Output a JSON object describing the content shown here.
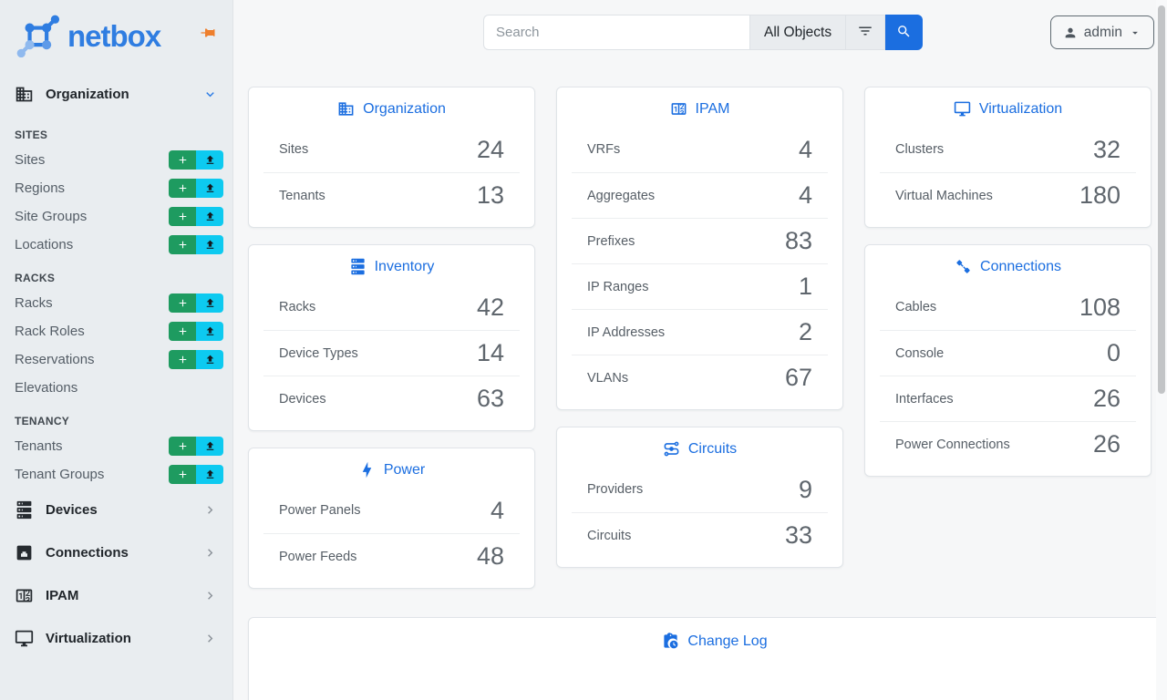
{
  "brand": {
    "name": "netbox",
    "logo_icon": "netbox-logo-icon",
    "pin_icon": "pin-icon"
  },
  "topbar": {
    "search": {
      "placeholder": "Search",
      "scope": "All Objects",
      "filter_icon": "filter-icon",
      "submit_icon": "search-icon"
    },
    "user": {
      "name": "admin",
      "icon": "person-icon",
      "caret_icon": "caret-down-icon"
    }
  },
  "sidebar": {
    "primary": [
      {
        "label": "Organization",
        "icon": "building-icon",
        "expanded": true,
        "chevron": "chevron-down-icon",
        "sections": [
          {
            "header": "SITES",
            "items": [
              {
                "label": "Sites",
                "can_add": true,
                "can_import": true
              },
              {
                "label": "Regions",
                "can_add": true,
                "can_import": true
              },
              {
                "label": "Site Groups",
                "can_add": true,
                "can_import": true
              },
              {
                "label": "Locations",
                "can_add": true,
                "can_import": true
              }
            ]
          },
          {
            "header": "RACKS",
            "items": [
              {
                "label": "Racks",
                "can_add": true,
                "can_import": true
              },
              {
                "label": "Rack Roles",
                "can_add": true,
                "can_import": true
              },
              {
                "label": "Reservations",
                "can_add": true,
                "can_import": true
              },
              {
                "label": "Elevations",
                "can_add": false,
                "can_import": false
              }
            ]
          },
          {
            "header": "TENANCY",
            "items": [
              {
                "label": "Tenants",
                "can_add": true,
                "can_import": true
              },
              {
                "label": "Tenant Groups",
                "can_add": true,
                "can_import": true
              }
            ]
          }
        ]
      },
      {
        "label": "Devices",
        "icon": "server-rack-icon",
        "expanded": false,
        "chevron": "chevron-right-icon"
      },
      {
        "label": "Connections",
        "icon": "ethernet-port-icon",
        "expanded": false,
        "chevron": "chevron-right-icon"
      },
      {
        "label": "IPAM",
        "icon": "counter-icon",
        "expanded": false,
        "chevron": "chevron-right-icon"
      },
      {
        "label": "Virtualization",
        "icon": "monitor-icon",
        "expanded": false,
        "chevron": "chevron-right-icon"
      }
    ],
    "action_icons": {
      "add": "plus-icon",
      "import": "upload-icon"
    }
  },
  "stat_cards": [
    {
      "column": 1,
      "title": "Organization",
      "icon": "building-icon",
      "rows": [
        {
          "label": "Sites",
          "value": "24"
        },
        {
          "label": "Tenants",
          "value": "13"
        }
      ]
    },
    {
      "column": 1,
      "title": "Inventory",
      "icon": "server-rack-icon",
      "rows": [
        {
          "label": "Racks",
          "value": "42"
        },
        {
          "label": "Device Types",
          "value": "14"
        },
        {
          "label": "Devices",
          "value": "63"
        }
      ]
    },
    {
      "column": 1,
      "title": "Power",
      "icon": "lightning-icon",
      "rows": [
        {
          "label": "Power Panels",
          "value": "4"
        },
        {
          "label": "Power Feeds",
          "value": "48"
        }
      ]
    },
    {
      "column": 2,
      "title": "IPAM",
      "icon": "counter-icon",
      "rows": [
        {
          "label": "VRFs",
          "value": "4"
        },
        {
          "label": "Aggregates",
          "value": "4"
        },
        {
          "label": "Prefixes",
          "value": "83"
        },
        {
          "label": "IP Ranges",
          "value": "1"
        },
        {
          "label": "IP Addresses",
          "value": "2"
        },
        {
          "label": "VLANs",
          "value": "67"
        }
      ]
    },
    {
      "column": 2,
      "title": "Circuits",
      "icon": "circuits-icon",
      "rows": [
        {
          "label": "Providers",
          "value": "9"
        },
        {
          "label": "Circuits",
          "value": "33"
        }
      ]
    },
    {
      "column": 3,
      "title": "Virtualization",
      "icon": "monitor-icon",
      "rows": [
        {
          "label": "Clusters",
          "value": "32"
        },
        {
          "label": "Virtual Machines",
          "value": "180"
        }
      ]
    },
    {
      "column": 3,
      "title": "Connections",
      "icon": "cable-icon",
      "rows": [
        {
          "label": "Cables",
          "value": "108"
        },
        {
          "label": "Console",
          "value": "0"
        },
        {
          "label": "Interfaces",
          "value": "26"
        },
        {
          "label": "Power Connections",
          "value": "26"
        }
      ]
    }
  ],
  "change_log": {
    "title": "Change Log",
    "icon": "clipboard-clock-icon"
  },
  "colors": {
    "accent_blue": "#1b6ee0",
    "success_green": "#1e9b60",
    "info_cyan": "#0dcaf0",
    "pin_orange": "#ee7f2d",
    "logo_blue": "#2f7de1",
    "logo_light_blue": "#8fb9ee"
  }
}
